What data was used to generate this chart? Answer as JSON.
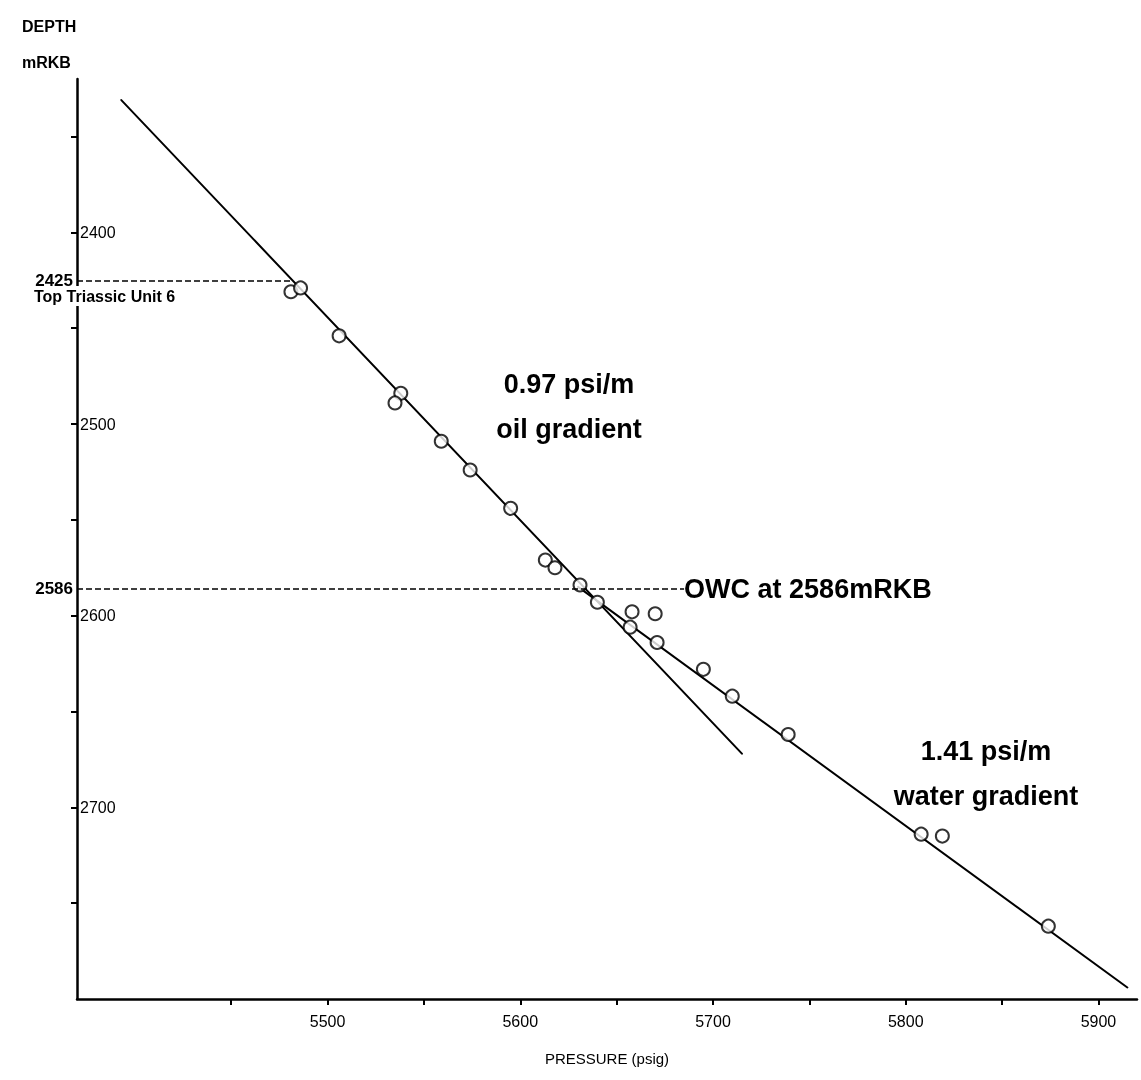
{
  "chart_data": {
    "type": "scatter",
    "xlabel": "PRESSURE (psig)",
    "ylabel": "DEPTH\nmRKB",
    "xlim": [
      5370,
      5920
    ],
    "ylim": [
      2800,
      2320
    ],
    "xticks": [
      {
        "value": 5450,
        "label": null
      },
      5500,
      {
        "value": 5550,
        "label": null
      },
      5600,
      {
        "value": 5650,
        "label": null
      },
      5700,
      {
        "value": 5750,
        "label": null
      },
      5800,
      {
        "value": 5850,
        "label": null
      },
      5900
    ],
    "yticks": [
      {
        "value": 2350,
        "label": null
      },
      2400,
      {
        "value": 2450,
        "label": null
      },
      2500,
      {
        "value": 2550,
        "label": null
      },
      2600,
      {
        "value": 2650,
        "label": null
      },
      2700,
      {
        "value": 2750,
        "label": null
      }
    ],
    "grid": false,
    "marker": "circle",
    "series": [
      {
        "color": "#000000",
        "x": [
          5481,
          5486,
          5506,
          5538,
          5535,
          5559,
          5574,
          5595,
          5613,
          5618,
          5631,
          5640,
          5658,
          5670,
          5657,
          5671,
          5695,
          5710,
          5739,
          5808,
          5819,
          5874
        ],
        "values": [
          2431,
          2429,
          2454,
          2484,
          2489,
          2509,
          2524,
          2544,
          2571,
          2575,
          2584,
          2593,
          2598,
          2599,
          2606,
          2614,
          2628,
          2642,
          2662,
          2714,
          2715,
          2762
        ]
      },
      {
        "type": "line",
        "color": "#000000",
        "marker": "none",
        "line_style": "solid",
        "x": [
          5393,
          5715
        ],
        "values": [
          2331,
          2672
        ]
      },
      {
        "type": "line",
        "color": "#000000",
        "marker": "none",
        "line_style": "solid",
        "x": [
          5630,
          5915
        ],
        "values": [
          2585,
          2794
        ]
      }
    ],
    "ref_lines": [
      {
        "axis": "y",
        "value": 2425,
        "label": "2425",
        "line_style": "dashed"
      },
      {
        "axis": "y",
        "value": 2586,
        "label": "2586",
        "line_style": "dashed"
      }
    ],
    "annotations": [
      "Top Triassic Unit 6",
      "0.97 psi/m\noil gradient",
      {
        "text": "OWC at 2586mRKB",
        "x": 5685,
        "y": 2586
      },
      "1.41 psi/m\nwater gradient"
    ]
  }
}
